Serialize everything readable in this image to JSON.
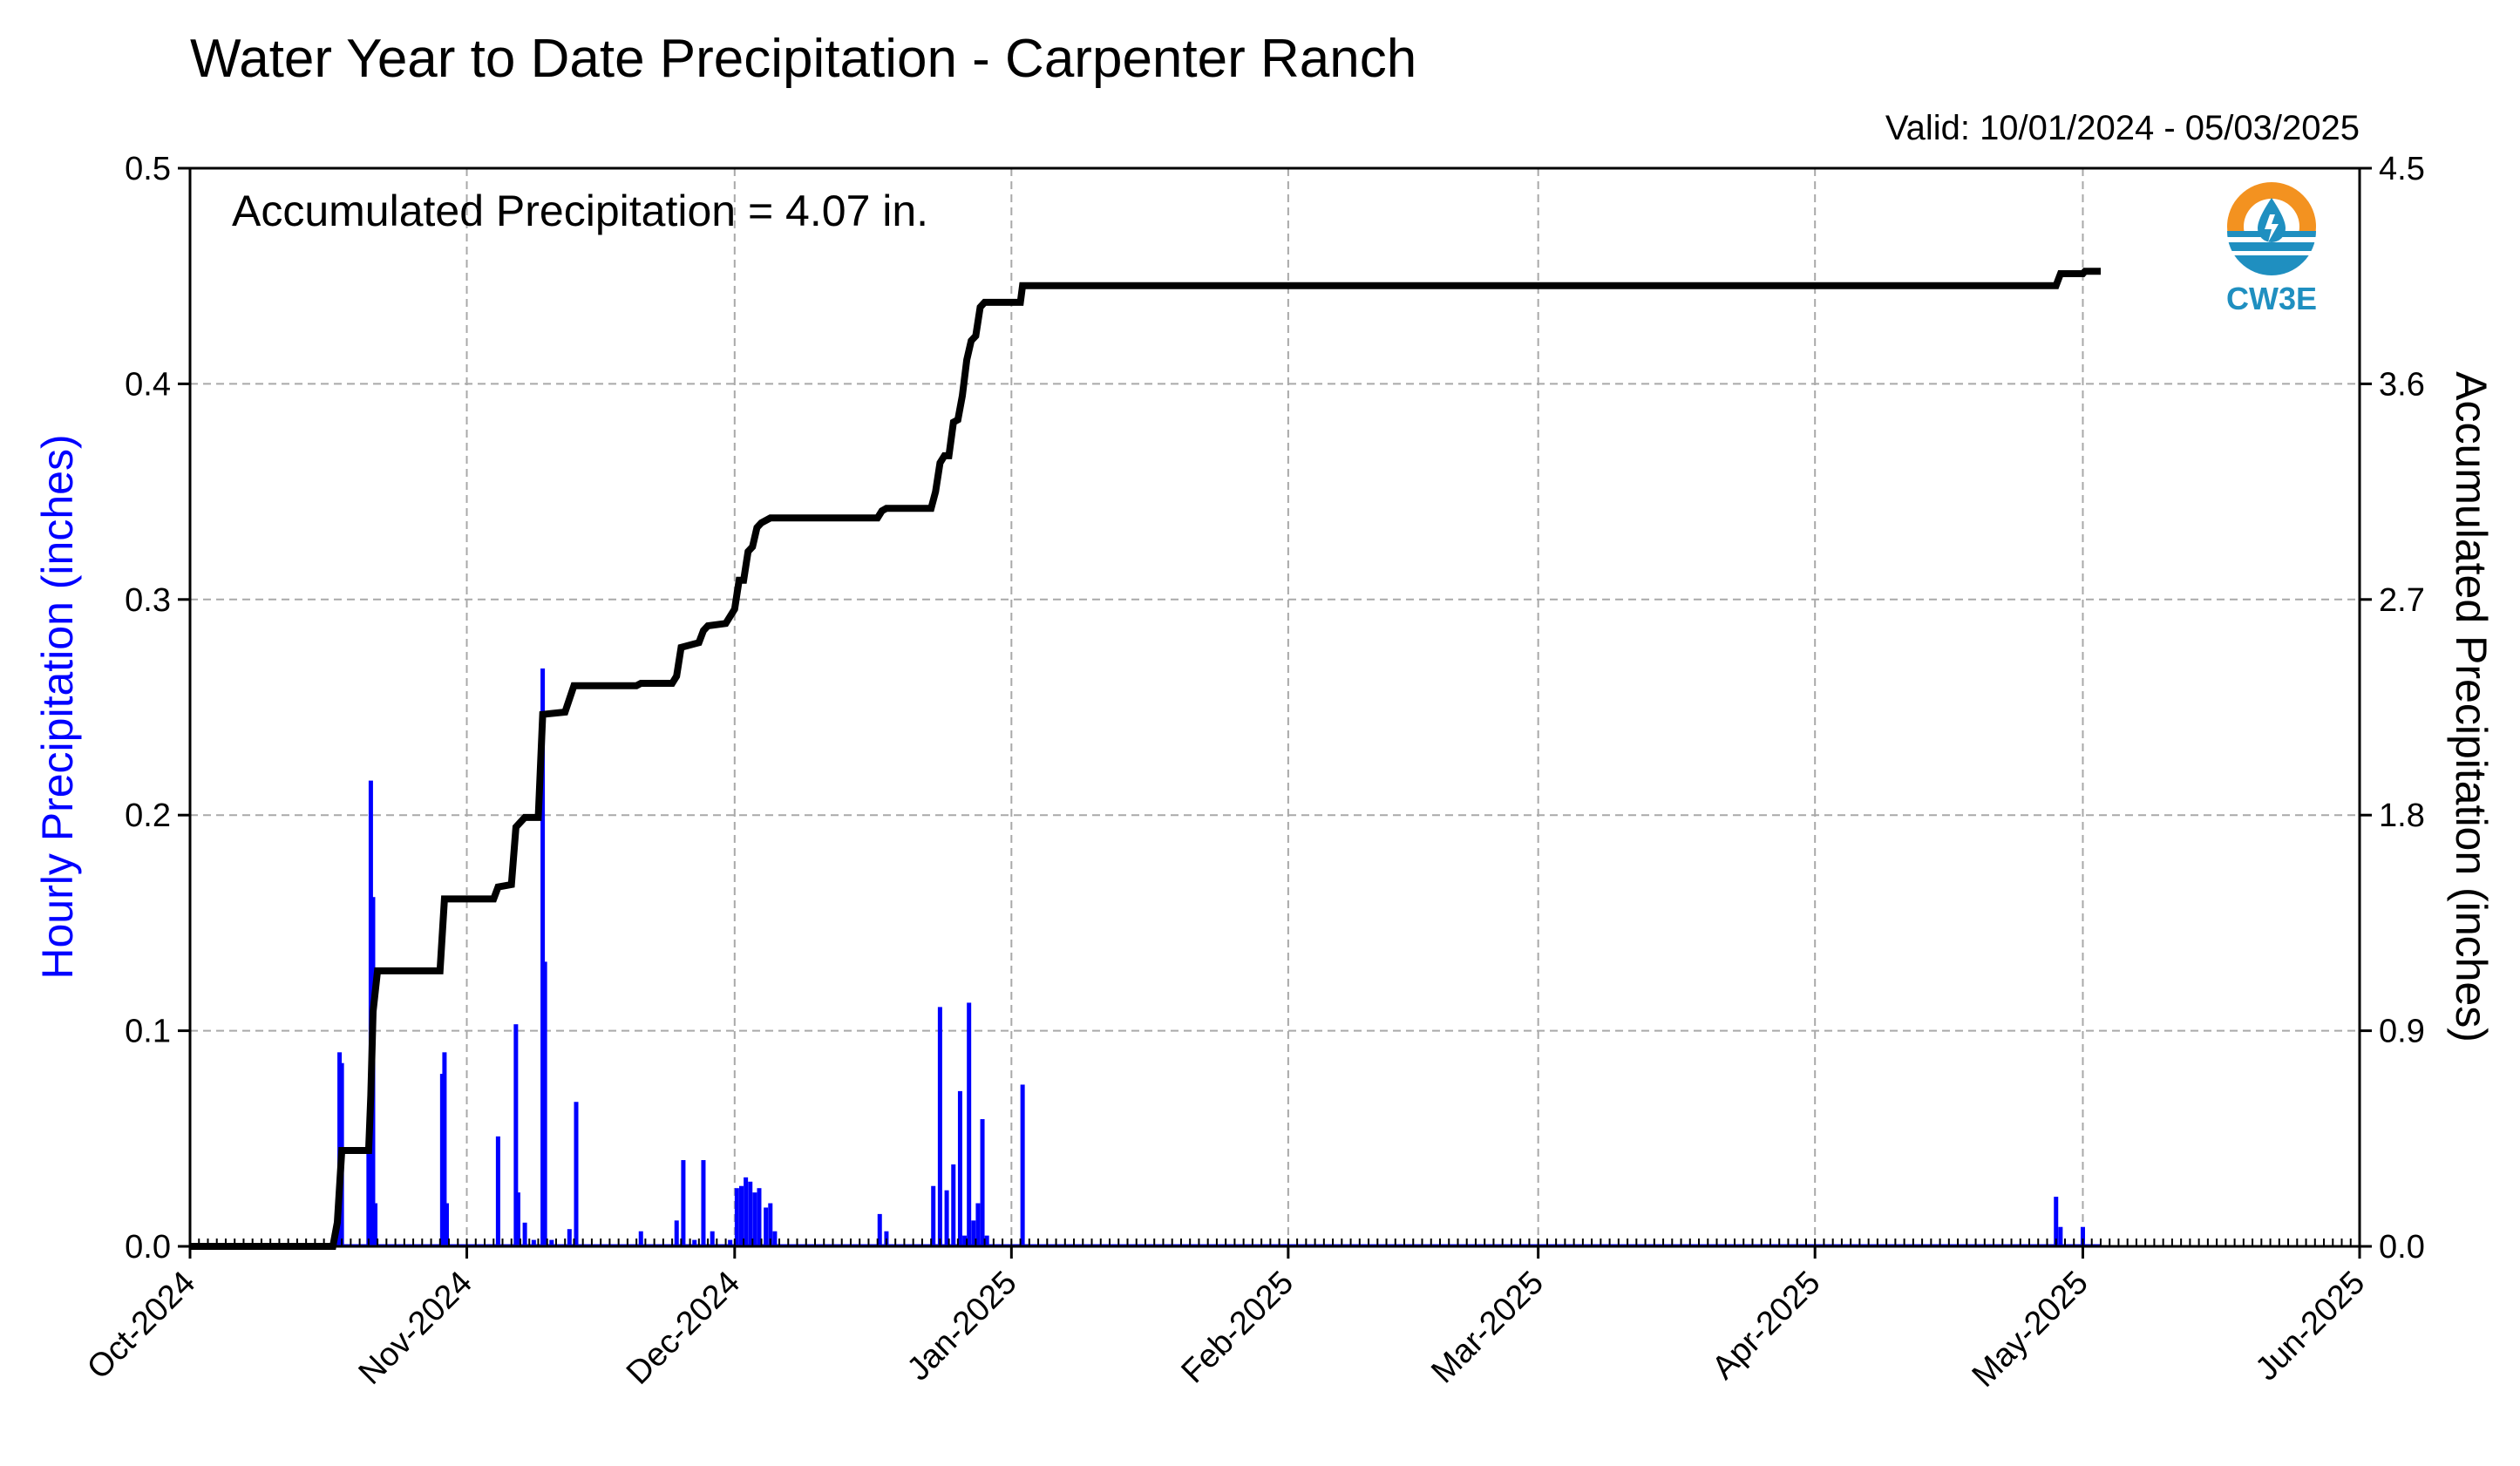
{
  "title": "Water Year to Date Precipitation - Carpenter Ranch",
  "valid_label": "Valid: 10/01/2024 - 05/03/2025",
  "annotation": "Accumulated Precipitation = 4.07 in.",
  "logo": {
    "text": "CW3E",
    "icon": "water-drop-logo-icon"
  },
  "colors": {
    "hourly": "#0000ff",
    "accumulated": "#000000",
    "logo_orange": "#f39220",
    "logo_blue": "#1f8fc0"
  },
  "chart_data": {
    "type": "bar+line",
    "x_start": "2024-10-01",
    "x_end": "2025-06-01",
    "xticks": [
      "Oct-2024",
      "Nov-2024",
      "Dec-2024",
      "Jan-2025",
      "Feb-2025",
      "Mar-2025",
      "Apr-2025",
      "May-2025",
      "Jun-2025"
    ],
    "xtick_dates": [
      "2024-10-01",
      "2024-11-01",
      "2024-12-01",
      "2025-01-01",
      "2025-02-01",
      "2025-03-01",
      "2025-04-01",
      "2025-05-01",
      "2025-06-01"
    ],
    "ylabel_left": "Hourly Precipitation (inches)",
    "ylabel_right": "Accumulated Precipitation (inches)",
    "ylim_left": [
      0,
      0.5
    ],
    "ylim_right": [
      0,
      4.5
    ],
    "yticks_left": [
      "0.0",
      "0.1",
      "0.2",
      "0.3",
      "0.4",
      "0.5"
    ],
    "yticks_right": [
      "0.0",
      "0.9",
      "1.8",
      "2.7",
      "3.6",
      "4.5"
    ],
    "grid": true,
    "series": [
      {
        "name": "Hourly Precipitation",
        "type": "bar",
        "axis": "left",
        "points": [
          [
            "2024-10-17T12:00",
            0.02
          ],
          [
            "2024-10-17T18:00",
            0.09
          ],
          [
            "2024-10-18T00:00",
            0.085
          ],
          [
            "2024-10-21T00:00",
            0.05
          ],
          [
            "2024-10-21T06:00",
            0.216
          ],
          [
            "2024-10-21T12:00",
            0.162
          ],
          [
            "2024-10-21T18:00",
            0.02
          ],
          [
            "2024-10-29T06:00",
            0.08
          ],
          [
            "2024-10-29T12:00",
            0.09
          ],
          [
            "2024-10-29T18:00",
            0.02
          ],
          [
            "2024-11-04T12:00",
            0.051
          ],
          [
            "2024-11-06T12:00",
            0.103
          ],
          [
            "2024-11-06T18:00",
            0.025
          ],
          [
            "2024-11-07T12:00",
            0.011
          ],
          [
            "2024-11-08T12:00",
            0.003
          ],
          [
            "2024-11-09T12:00",
            0.268
          ],
          [
            "2024-11-09T18:00",
            0.132
          ],
          [
            "2024-11-10T12:00",
            0.003
          ],
          [
            "2024-11-12T12:00",
            0.008
          ],
          [
            "2024-11-13T06:00",
            0.067
          ],
          [
            "2024-11-20T12:00",
            0.007
          ],
          [
            "2024-11-24T12:00",
            0.012
          ],
          [
            "2024-11-25T06:00",
            0.04
          ],
          [
            "2024-11-26T12:00",
            0.003
          ],
          [
            "2024-11-27T12:00",
            0.04
          ],
          [
            "2024-11-28T12:00",
            0.007
          ],
          [
            "2024-11-30T12:00",
            0.003
          ],
          [
            "2024-12-01T06:00",
            0.027
          ],
          [
            "2024-12-01T18:00",
            0.028
          ],
          [
            "2024-12-02T06:00",
            0.032
          ],
          [
            "2024-12-02T18:00",
            0.03
          ],
          [
            "2024-12-03T06:00",
            0.025
          ],
          [
            "2024-12-03T18:00",
            0.027
          ],
          [
            "2024-12-04T12:00",
            0.018
          ],
          [
            "2024-12-05T00:00",
            0.02
          ],
          [
            "2024-12-05T12:00",
            0.007
          ],
          [
            "2024-12-17T06:00",
            0.015
          ],
          [
            "2024-12-18T00:00",
            0.007
          ],
          [
            "2024-12-23T06:00",
            0.028
          ],
          [
            "2024-12-24T00:00",
            0.111
          ],
          [
            "2024-12-24T18:00",
            0.026
          ],
          [
            "2024-12-25T12:00",
            0.038
          ],
          [
            "2024-12-26T06:00",
            0.072
          ],
          [
            "2024-12-26T18:00",
            0.005
          ],
          [
            "2024-12-27T06:00",
            0.113
          ],
          [
            "2024-12-27T18:00",
            0.012
          ],
          [
            "2024-12-28T06:00",
            0.02
          ],
          [
            "2024-12-28T18:00",
            0.059
          ],
          [
            "2024-12-29T06:00",
            0.005
          ],
          [
            "2025-01-02T06:00",
            0.075
          ],
          [
            "2025-04-28T00:00",
            0.023
          ],
          [
            "2025-04-28T12:00",
            0.009
          ],
          [
            "2025-05-01T00:00",
            0.009
          ]
        ]
      },
      {
        "name": "Accumulated Precipitation",
        "type": "line",
        "axis": "right",
        "points": [
          [
            "2024-10-01",
            0.0
          ],
          [
            "2024-10-17",
            0.0
          ],
          [
            "2024-10-17T12:00",
            0.1
          ],
          [
            "2024-10-18",
            0.4
          ],
          [
            "2024-10-21",
            0.4
          ],
          [
            "2024-10-21T06:00",
            0.63
          ],
          [
            "2024-10-21T12:00",
            0.98
          ],
          [
            "2024-10-22",
            1.15
          ],
          [
            "2024-10-29",
            1.15
          ],
          [
            "2024-10-29T12:00",
            1.45
          ],
          [
            "2024-11-04",
            1.45
          ],
          [
            "2024-11-04T12:00",
            1.5
          ],
          [
            "2024-11-06",
            1.51
          ],
          [
            "2024-11-06T12:00",
            1.75
          ],
          [
            "2024-11-07",
            1.77
          ],
          [
            "2024-11-07T12:00",
            1.79
          ],
          [
            "2024-11-09",
            1.79
          ],
          [
            "2024-11-09T12:00",
            2.22
          ],
          [
            "2024-11-12",
            2.23
          ],
          [
            "2024-11-13",
            2.34
          ],
          [
            "2024-11-20",
            2.34
          ],
          [
            "2024-11-20T12:00",
            2.35
          ],
          [
            "2024-11-24",
            2.35
          ],
          [
            "2024-11-24T12:00",
            2.38
          ],
          [
            "2024-11-25",
            2.5
          ],
          [
            "2024-11-27",
            2.52
          ],
          [
            "2024-11-27T12:00",
            2.57
          ],
          [
            "2024-11-28",
            2.59
          ],
          [
            "2024-11-30",
            2.6
          ],
          [
            "2024-12-01",
            2.66
          ],
          [
            "2024-12-01T12:00",
            2.78
          ],
          [
            "2024-12-02",
            2.78
          ],
          [
            "2024-12-02T12:00",
            2.9
          ],
          [
            "2024-12-03",
            2.92
          ],
          [
            "2024-12-03T12:00",
            3.0
          ],
          [
            "2024-12-04",
            3.02
          ],
          [
            "2024-12-05",
            3.04
          ],
          [
            "2024-12-17",
            3.04
          ],
          [
            "2024-12-17T12:00",
            3.07
          ],
          [
            "2024-12-18",
            3.08
          ],
          [
            "2024-12-23",
            3.08
          ],
          [
            "2024-12-23T12:00",
            3.15
          ],
          [
            "2024-12-24",
            3.27
          ],
          [
            "2024-12-24T12:00",
            3.3
          ],
          [
            "2024-12-25",
            3.3
          ],
          [
            "2024-12-25T12:00",
            3.44
          ],
          [
            "2024-12-26",
            3.45
          ],
          [
            "2024-12-26T12:00",
            3.55
          ],
          [
            "2024-12-27",
            3.7
          ],
          [
            "2024-12-27T12:00",
            3.78
          ],
          [
            "2024-12-28",
            3.8
          ],
          [
            "2024-12-28T12:00",
            3.92
          ],
          [
            "2024-12-29",
            3.94
          ],
          [
            "2025-01-02",
            3.94
          ],
          [
            "2025-01-02T06:00",
            4.01
          ],
          [
            "2025-04-28",
            4.01
          ],
          [
            "2025-04-28T12:00",
            4.06
          ],
          [
            "2025-05-01",
            4.06
          ],
          [
            "2025-05-01T06:00",
            4.07
          ],
          [
            "2025-05-03",
            4.07
          ]
        ]
      }
    ]
  }
}
